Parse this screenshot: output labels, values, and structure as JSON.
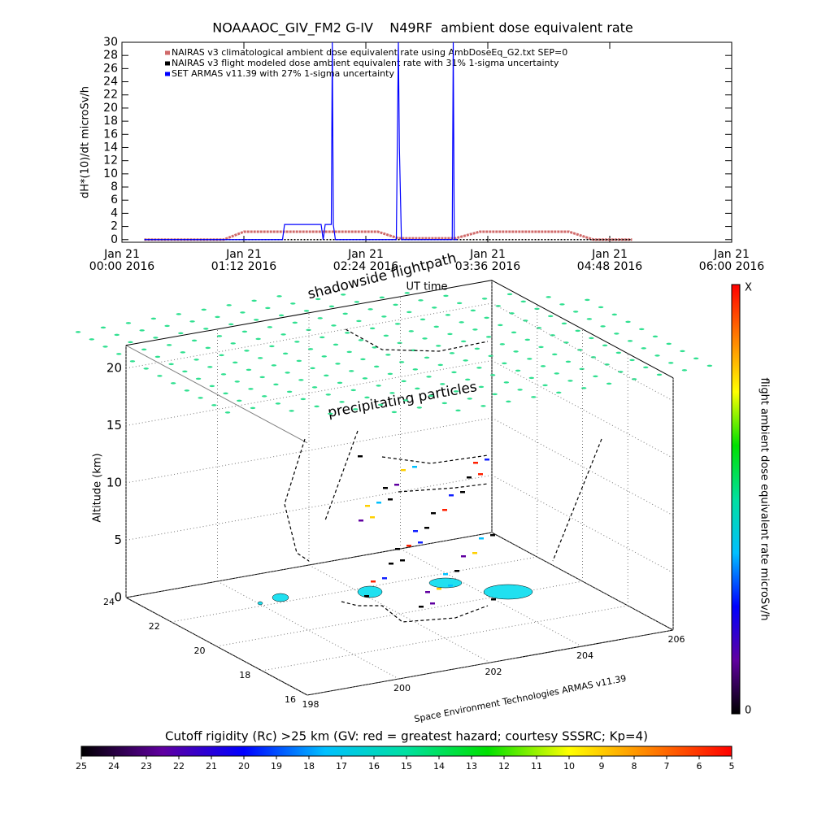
{
  "chart_data": [
    {
      "type": "line",
      "title": "NOAAAOC_GIV_FM2 G-IV    N49RF  ambient dose equivalent rate",
      "ylabel": "dH*(10)/dt microSv/h",
      "xlabel": "UT time",
      "xlim": [
        0,
        6
      ],
      "xticks": [
        {
          "value": 0,
          "label": [
            "Jan 21",
            "00:00 2016"
          ]
        },
        {
          "value": 1.2,
          "label": [
            "Jan 21",
            "01:12 2016"
          ]
        },
        {
          "value": 2.4,
          "label": [
            "Jan 21",
            "02:24 2016"
          ]
        },
        {
          "value": 3.6,
          "label": [
            "Jan 21",
            "03:36 2016"
          ]
        },
        {
          "value": 4.8,
          "label": [
            "Jan 21",
            "04:48 2016"
          ]
        },
        {
          "value": 6,
          "label": [
            "Jan 21",
            "06:00 2016"
          ]
        }
      ],
      "ylim": [
        -0.4,
        30
      ],
      "yticks": [
        0,
        2,
        4,
        6,
        8,
        10,
        12,
        14,
        16,
        18,
        20,
        22,
        24,
        26,
        28,
        30
      ],
      "series": [
        {
          "name": "NAIRAS v3 climatological ambient dose equivalent rate using AmbDoseEq_G2.txt SEP=0",
          "color": "#d06a6a",
          "x": [
            0.22,
            1.0,
            1.2,
            2.52,
            2.72,
            3.28,
            3.52,
            4.4,
            4.64,
            5.02
          ],
          "values": [
            0,
            0,
            1.2,
            1.2,
            0.2,
            0.2,
            1.2,
            1.2,
            0,
            0
          ]
        },
        {
          "name": "NAIRAS v3 flight modeled dose ambient equivalent rate with 31% 1-sigma uncertainty",
          "color": "#000000",
          "x": [
            0.22,
            5.02
          ],
          "values": [
            0,
            0
          ]
        },
        {
          "name": "SET ARMAS v11.39 with 27% 1-sigma uncertainty",
          "color": "#0000ff",
          "x": [
            0.22,
            1.58,
            1.6,
            1.96,
            1.98,
            2.0,
            2.06,
            2.07,
            2.08,
            2.1,
            2.7,
            2.72,
            2.73,
            2.75,
            3.25,
            3.26,
            3.27,
            3.3
          ],
          "values": [
            0,
            0,
            2.3,
            2.3,
            0,
            2.3,
            2.3,
            30,
            2.3,
            0,
            0,
            30,
            14,
            0,
            0,
            30,
            0,
            0
          ]
        }
      ]
    },
    {
      "type": "scatter3d",
      "zlabel": "Altitude (km)",
      "annotations": [
        "shadowside flightpath",
        "precipitating particles",
        "Space Environment Technologies ARMAS v11.39"
      ],
      "xlim": [
        198,
        206
      ],
      "xticks": [
        198,
        200,
        202,
        204,
        206
      ],
      "ylim": [
        16,
        24
      ],
      "yticks": [
        24,
        22,
        20,
        18,
        16
      ],
      "zlim": [
        0,
        22
      ],
      "zticks": [
        0,
        5,
        10,
        15,
        20
      ]
    },
    {
      "type": "colorbar",
      "title": "flight ambient dose equivalent rate microSv/h",
      "labels": [
        "X",
        "0"
      ],
      "colors": [
        "#ff0000",
        "#ff8000",
        "#ffff00",
        "#00e000",
        "#00e0a0",
        "#00c0ff",
        "#0000ff",
        "#6000a0",
        "#000000"
      ]
    },
    {
      "type": "colorbar",
      "title": "Cutoff rigidity (Rc) >25 km (GV: red = greatest hazard; courtesy SSSRC; Kp=4)",
      "lim": [
        25,
        5
      ],
      "ticks": [
        25,
        24,
        23,
        22,
        21,
        20,
        19,
        18,
        17,
        16,
        15,
        14,
        13,
        12,
        11,
        10,
        9,
        8,
        7,
        6,
        5
      ],
      "colors": [
        "#000000",
        "#6000a0",
        "#0000ff",
        "#00c0ff",
        "#00e0a0",
        "#00e000",
        "#ffff00",
        "#ff8000",
        "#ff0000"
      ]
    }
  ]
}
